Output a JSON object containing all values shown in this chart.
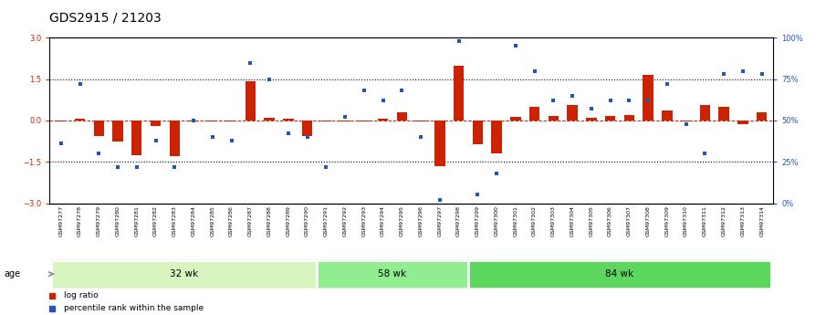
{
  "title": "GDS2915 / 21203",
  "samples": [
    "GSM97277",
    "GSM97278",
    "GSM97279",
    "GSM97280",
    "GSM97281",
    "GSM97282",
    "GSM97283",
    "GSM97284",
    "GSM97285",
    "GSM97286",
    "GSM97287",
    "GSM97288",
    "GSM97289",
    "GSM97290",
    "GSM97291",
    "GSM97292",
    "GSM97293",
    "GSM97294",
    "GSM97295",
    "GSM97296",
    "GSM97297",
    "GSM97298",
    "GSM97299",
    "GSM97300",
    "GSM97301",
    "GSM97302",
    "GSM97303",
    "GSM97304",
    "GSM97305",
    "GSM97306",
    "GSM97307",
    "GSM97308",
    "GSM97309",
    "GSM97310",
    "GSM97311",
    "GSM97312",
    "GSM97313",
    "GSM97314"
  ],
  "log_ratio": [
    -0.05,
    0.08,
    -0.55,
    -0.75,
    -1.25,
    -0.2,
    -1.3,
    -0.02,
    -0.02,
    -0.04,
    1.42,
    0.1,
    0.05,
    -0.55,
    -0.02,
    -0.05,
    -0.05,
    0.05,
    0.3,
    -0.05,
    -1.65,
    2.0,
    -0.85,
    -1.2,
    0.12,
    0.5,
    0.15,
    0.55,
    0.1,
    0.15,
    0.2,
    1.65,
    0.35,
    -0.05,
    0.55,
    0.5,
    -0.15,
    0.3
  ],
  "percentile": [
    36,
    72,
    30,
    22,
    22,
    38,
    22,
    50,
    40,
    38,
    85,
    75,
    42,
    40,
    22,
    52,
    68,
    62,
    68,
    40,
    2,
    98,
    5,
    18,
    95,
    80,
    62,
    65,
    57,
    62,
    62,
    62,
    72,
    48,
    30,
    78,
    80,
    78
  ],
  "groups": [
    {
      "label": "32 wk",
      "start": 0,
      "end": 14
    },
    {
      "label": "58 wk",
      "start": 14,
      "end": 22
    },
    {
      "label": "84 wk",
      "start": 22,
      "end": 38
    }
  ],
  "group_colors": [
    "#d8f5c0",
    "#90ee90",
    "#5cd65c"
  ],
  "bar_color": "#cc2200",
  "dot_color": "#2255bb",
  "ytick_color": "#cc2200",
  "ylim_left": [
    -3,
    3
  ],
  "ylim_right": [
    0,
    100
  ],
  "yticks_left": [
    -3,
    -1.5,
    0,
    1.5,
    3
  ],
  "yticks_right": [
    0,
    25,
    50,
    75,
    100
  ],
  "bg_color": "#ffffff",
  "xtick_bg": "#d8d8d8",
  "title_fontsize": 10,
  "tick_fontsize": 6,
  "bar_fontsize": 4.5,
  "legend_log_label": "log ratio",
  "legend_pct_label": "percentile rank within the sample",
  "age_label": "age"
}
